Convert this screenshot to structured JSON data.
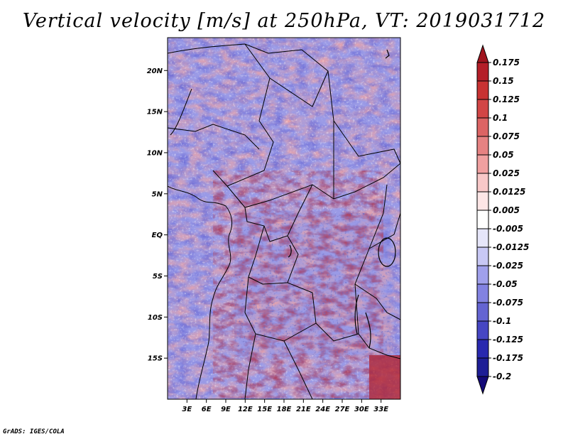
{
  "title": "Vertical velocity [m/s] at 250hPa, VT: 2019031712",
  "footer": "GrADS: IGES/COLA",
  "map": {
    "lon_range": [
      0,
      36
    ],
    "lat_range": [
      -20,
      24
    ],
    "lat_ticks": [
      {
        "lat": 20,
        "label": "20N"
      },
      {
        "lat": 15,
        "label": "15N"
      },
      {
        "lat": 10,
        "label": "10N"
      },
      {
        "lat": 5,
        "label": "5N"
      },
      {
        "lat": 0,
        "label": "EQ"
      },
      {
        "lat": -5,
        "label": "5S"
      },
      {
        "lat": -10,
        "label": "10S"
      },
      {
        "lat": -15,
        "label": "15S"
      }
    ],
    "lon_ticks": [
      {
        "lon": 3,
        "label": "3E"
      },
      {
        "lon": 6,
        "label": "6E"
      },
      {
        "lon": 9,
        "label": "9E"
      },
      {
        "lon": 12,
        "label": "12E"
      },
      {
        "lon": 15,
        "label": "15E"
      },
      {
        "lon": 18,
        "label": "18E"
      },
      {
        "lon": 21,
        "label": "21E"
      },
      {
        "lon": 24,
        "label": "24E"
      },
      {
        "lon": 27,
        "label": "27E"
      },
      {
        "lon": 30,
        "label": "30E"
      },
      {
        "lon": 33,
        "label": "33E"
      }
    ]
  },
  "colorbar": {
    "labels": [
      "0.175",
      "0.15",
      "0.125",
      "0.1",
      "0.075",
      "0.05",
      "0.025",
      "0.0125",
      "0.005",
      "-0.005",
      "-0.0125",
      "-0.025",
      "-0.05",
      "-0.075",
      "-0.1",
      "-0.125",
      "-0.175",
      "-0.2"
    ],
    "colors": [
      "#a0141e",
      "#b41e28",
      "#c83232",
      "#d24646",
      "#dc6464",
      "#e68282",
      "#f0a0a0",
      "#f8c8c8",
      "#fde6e6",
      "#ffffff",
      "#e6e6fa",
      "#c8c8f5",
      "#a0a0eb",
      "#8282e1",
      "#6464d2",
      "#4646c3",
      "#2828af",
      "#1e1e96",
      "#140a78"
    ]
  }
}
